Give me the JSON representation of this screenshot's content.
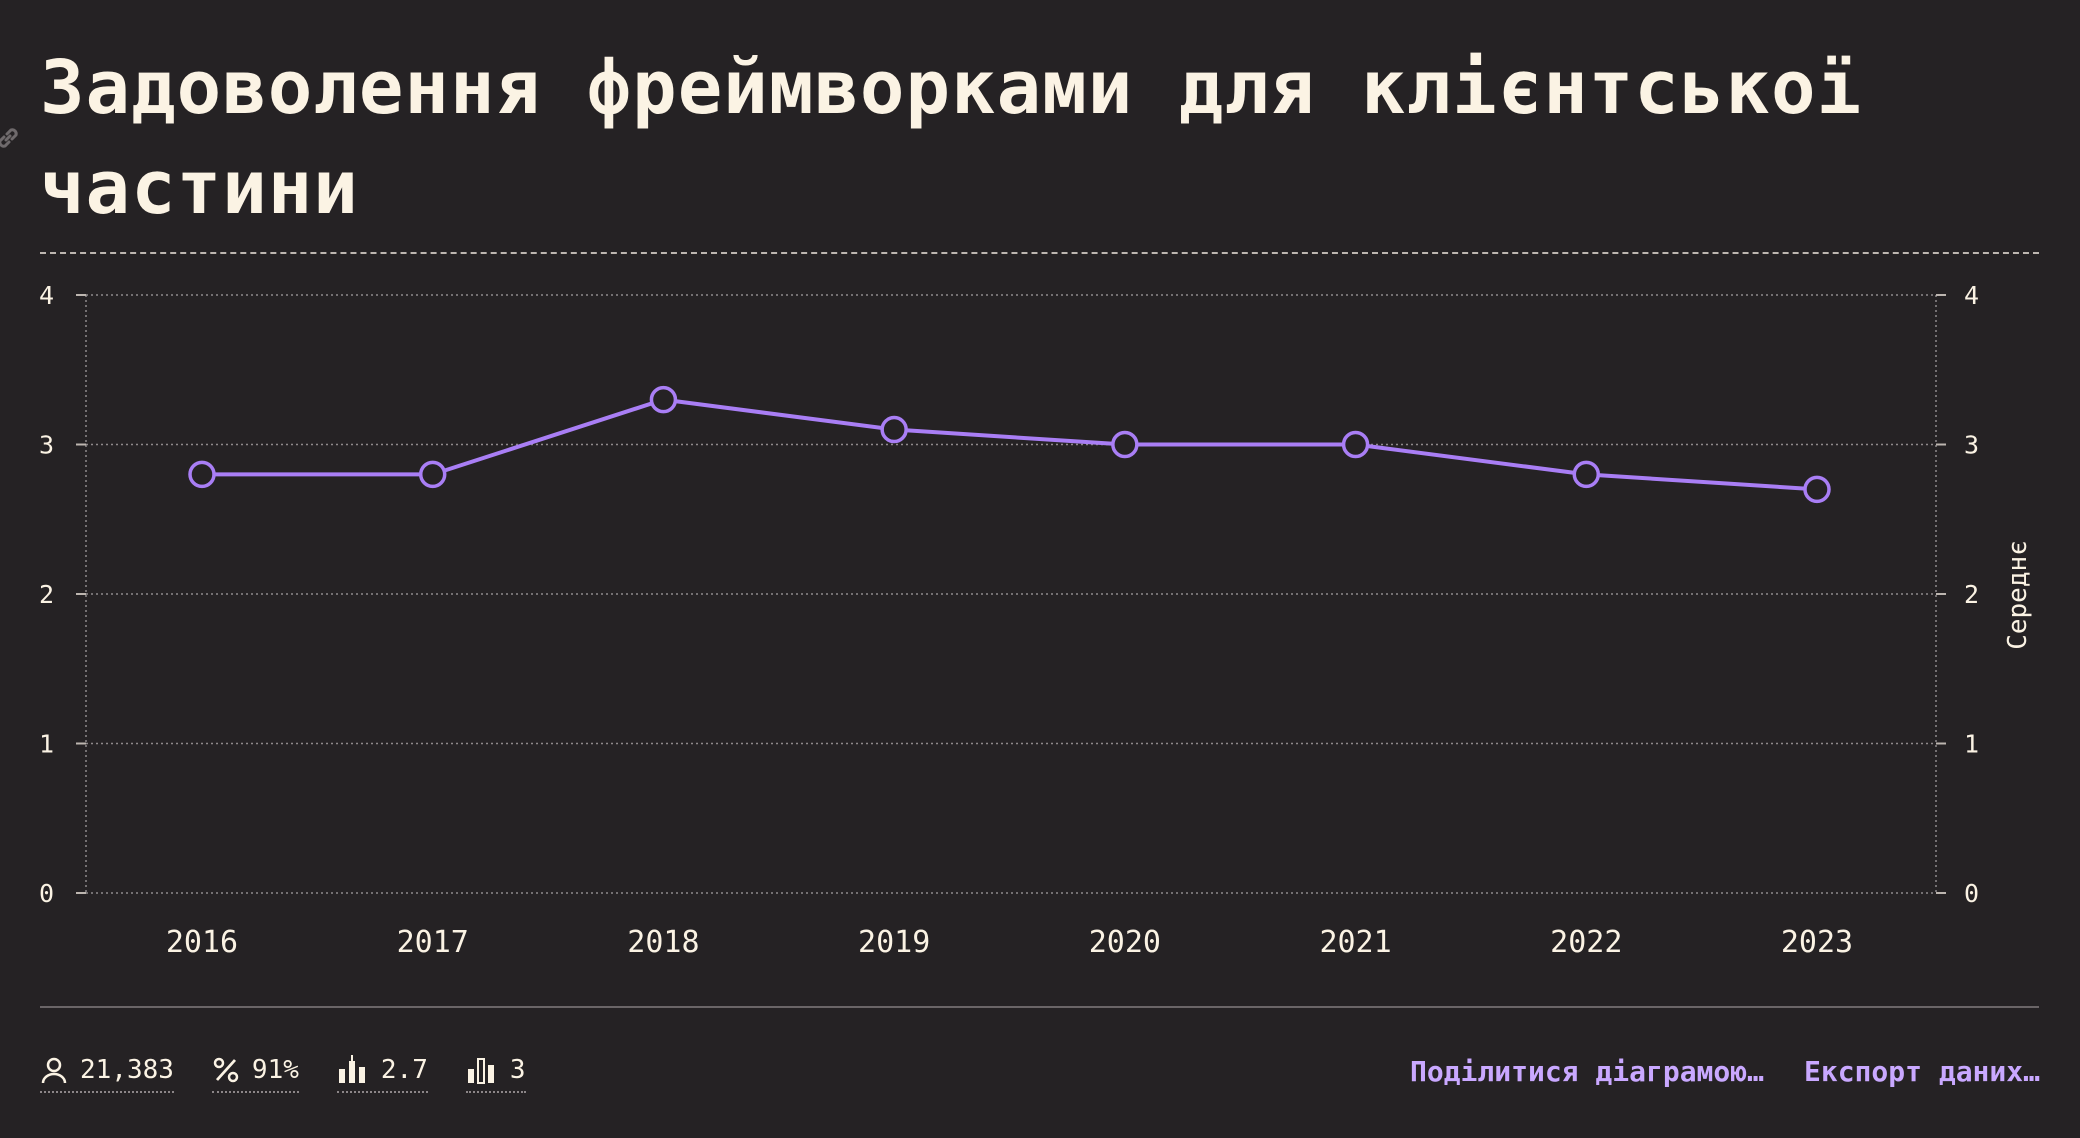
{
  "title": "Задоволення фреймворками для клієнтської частини",
  "colors": {
    "background": "#252224",
    "text": "#fbf3e4",
    "series": "#a97ef5",
    "accent_link": "#c9a8ff"
  },
  "chart_data": {
    "type": "line",
    "title": "Задоволення фреймворками для клієнтської частини",
    "xlabel": "",
    "ylabel": "Середнє",
    "categories": [
      "2016",
      "2017",
      "2018",
      "2019",
      "2020",
      "2021",
      "2022",
      "2023"
    ],
    "series": [
      {
        "values": [
          2.8,
          2.8,
          3.3,
          3.1,
          3.0,
          3.0,
          2.8,
          2.7
        ]
      }
    ],
    "ylim": [
      0,
      4
    ],
    "yticks": [
      "0",
      "1",
      "2",
      "3",
      "4"
    ],
    "grid": true,
    "right_axis": true
  },
  "stats": [
    {
      "icon": "user-icon",
      "value": "21,383"
    },
    {
      "icon": "percent-icon",
      "value": "91%"
    },
    {
      "icon": "average-bars-icon",
      "value": "2.7"
    },
    {
      "icon": "rank-bars-icon",
      "value": "3"
    }
  ],
  "actions": {
    "share": "Поділитися діаграмою…",
    "export": "Експорт даних…"
  }
}
